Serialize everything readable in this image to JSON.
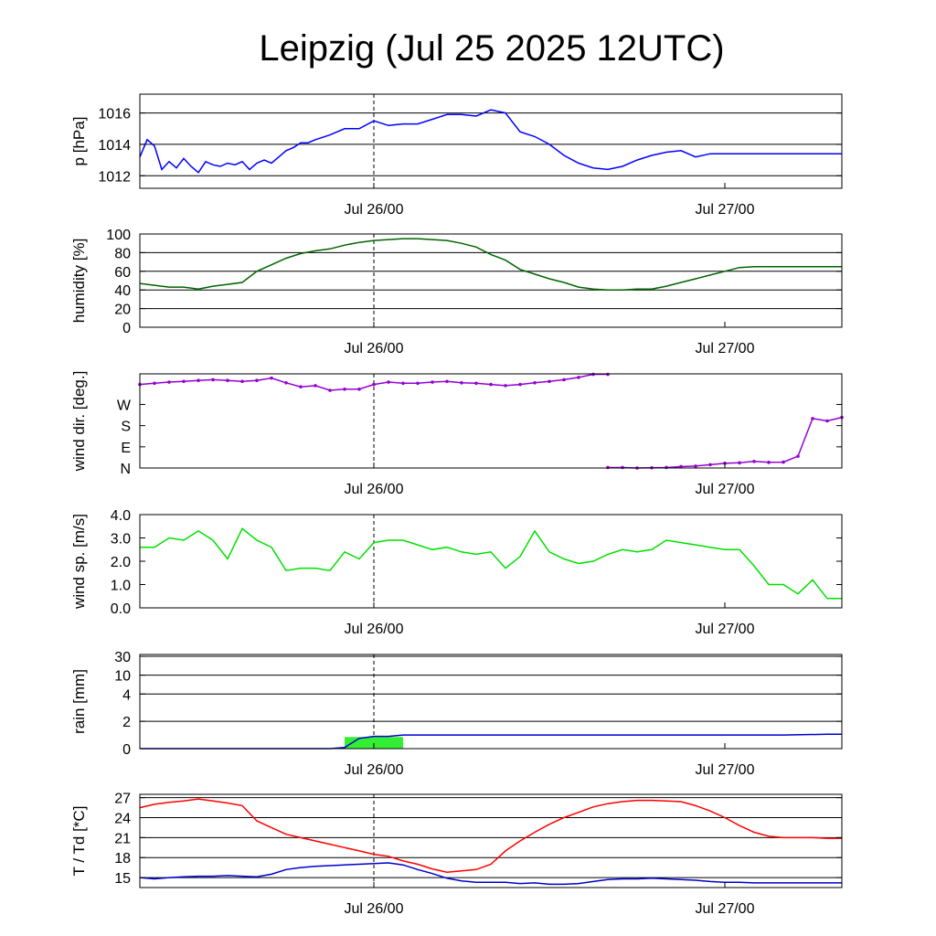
{
  "title": "Leipzig (Jul 25 2025 12UTC)",
  "chart_data": [
    {
      "type": "line",
      "ylabel": "p [hPa]",
      "ylim": [
        1011.2,
        1017.2
      ],
      "yticks": [
        "1012",
        "1014",
        "1016"
      ],
      "xticks": [
        "Jul 26/00",
        "Jul 27/00"
      ],
      "grid": true,
      "reference_line": "Jul 26/00",
      "series": [
        {
          "color": "#0000ff",
          "x": [
            0,
            0.5,
            1,
            1.5,
            2,
            2.5,
            3,
            3.5,
            4,
            4.5,
            5,
            5.5,
            6,
            6.5,
            7,
            7.5,
            8,
            8.5,
            9,
            9.5,
            10,
            10.5,
            11,
            11.5,
            12,
            13,
            14,
            15,
            16,
            17,
            18,
            19,
            20,
            21,
            22,
            23,
            24,
            25,
            26,
            27,
            28,
            29,
            30,
            31,
            32,
            33,
            34,
            35,
            36,
            37,
            38,
            39,
            40,
            41,
            42,
            43,
            44,
            45,
            46,
            47,
            48
          ],
          "values": [
            1013.2,
            1014.3,
            1013.9,
            1012.4,
            1012.9,
            1012.5,
            1013.1,
            1012.6,
            1012.2,
            1012.9,
            1012.7,
            1012.6,
            1012.8,
            1012.7,
            1012.9,
            1012.4,
            1012.8,
            1013.0,
            1012.8,
            1013.2,
            1013.6,
            1013.8,
            1014.1,
            1014.1,
            1014.3,
            1014.6,
            1015.0,
            1015.0,
            1015.5,
            1015.2,
            1015.3,
            1015.3,
            1015.6,
            1015.9,
            1015.9,
            1015.8,
            1016.2,
            1016.0,
            1014.8,
            1014.5,
            1014.0,
            1013.3,
            1012.8,
            1012.5,
            1012.4,
            1012.6,
            1013.0,
            1013.3,
            1013.5,
            1013.6,
            1013.2,
            1013.4,
            1013.4,
            1013.4,
            1013.4,
            1013.4,
            1013.4,
            1013.4,
            1013.4,
            1013.4,
            1013.4
          ]
        }
      ]
    },
    {
      "type": "line",
      "ylabel": "humidity [%]",
      "ylim": [
        0,
        100
      ],
      "yticks": [
        "0",
        "20",
        "40",
        "60",
        "80",
        "100"
      ],
      "xticks": [
        "Jul 26/00",
        "Jul 27/00"
      ],
      "grid": true,
      "reference_line": "Jul 26/00",
      "series": [
        {
          "color": "#006400",
          "x": [
            0,
            1,
            2,
            3,
            4,
            5,
            6,
            7,
            8,
            9,
            10,
            11,
            12,
            13,
            14,
            15,
            16,
            17,
            18,
            19,
            20,
            21,
            22,
            23,
            24,
            25,
            26,
            27,
            28,
            29,
            30,
            31,
            32,
            33,
            34,
            35,
            36,
            37,
            38,
            39,
            40,
            41,
            42,
            43,
            44,
            45,
            46,
            47,
            48
          ],
          "values": [
            47,
            45,
            43,
            43,
            41,
            44,
            46,
            48,
            60,
            67,
            74,
            79,
            82,
            84,
            88,
            91,
            93,
            94,
            95,
            95,
            94,
            93,
            90,
            86,
            78,
            72,
            62,
            57,
            52,
            48,
            43,
            41,
            40,
            40,
            41,
            41,
            44,
            48,
            52,
            56,
            60,
            64,
            65,
            65,
            65,
            65,
            65,
            65,
            65
          ]
        }
      ]
    },
    {
      "type": "scatter",
      "ylabel": "wind dir. [deg.]",
      "ylim": [
        0,
        400
      ],
      "yticks": [
        "N",
        "E",
        "S",
        "W"
      ],
      "ytick_values": [
        0,
        90,
        180,
        270
      ],
      "xticks": [
        "Jul 26/00",
        "Jul 27/00"
      ],
      "grid": false,
      "reference_line": "Jul 26/00",
      "series": [
        {
          "color": "#9400d3",
          "x": [
            0,
            1,
            2,
            3,
            4,
            5,
            6,
            7,
            8,
            9,
            10,
            11,
            12,
            13,
            14,
            15,
            16,
            17,
            18,
            19,
            20,
            21,
            22,
            23,
            24,
            25,
            26,
            27,
            28,
            29,
            30,
            31,
            32
          ],
          "values": [
            355,
            360,
            365,
            368,
            372,
            375,
            372,
            368,
            372,
            382,
            362,
            345,
            350,
            330,
            335,
            335,
            355,
            365,
            360,
            360,
            365,
            368,
            362,
            360,
            355,
            350,
            355,
            362,
            368,
            375,
            385,
            398,
            398
          ]
        },
        {
          "color": "#9400d3",
          "x": [
            32,
            33,
            34,
            35,
            36,
            37,
            38,
            39,
            40,
            41,
            42,
            43,
            44,
            45,
            46,
            47,
            48
          ],
          "values": [
            2,
            2,
            0,
            1,
            2,
            6,
            8,
            14,
            20,
            22,
            28,
            24,
            25,
            50,
            210,
            200,
            215
          ]
        }
      ]
    },
    {
      "type": "line",
      "ylabel": "wind sp. [m/s]",
      "ylim": [
        0,
        4.0
      ],
      "yticks": [
        "0.0",
        "1.0",
        "2.0",
        "3.0",
        "4.0"
      ],
      "xticks": [
        "Jul 26/00",
        "Jul 27/00"
      ],
      "grid": false,
      "reference_line": "Jul 26/00",
      "series": [
        {
          "color": "#00e000",
          "x": [
            0,
            1,
            2,
            3,
            4,
            5,
            6,
            7,
            8,
            9,
            10,
            11,
            12,
            13,
            14,
            15,
            16,
            17,
            18,
            19,
            20,
            21,
            22,
            23,
            24,
            25,
            26,
            27,
            28,
            29,
            30,
            31,
            32,
            33,
            34,
            35,
            36,
            37,
            38,
            39,
            40,
            41,
            42,
            43,
            44,
            45,
            46,
            47,
            48
          ],
          "values": [
            2.6,
            2.6,
            3.0,
            2.9,
            3.3,
            2.9,
            2.1,
            3.4,
            2.9,
            2.6,
            1.6,
            1.7,
            1.7,
            1.6,
            2.4,
            2.1,
            2.8,
            2.9,
            2.9,
            2.7,
            2.5,
            2.6,
            2.4,
            2.3,
            2.4,
            1.7,
            2.2,
            3.3,
            2.4,
            2.1,
            1.9,
            2.0,
            2.3,
            2.5,
            2.4,
            2.5,
            2.9,
            2.8,
            2.7,
            2.6,
            2.5,
            2.5,
            1.8,
            1.0,
            1.0,
            0.6,
            1.2,
            0.4,
            0.4
          ]
        }
      ]
    },
    {
      "type": "bar",
      "ylabel": "rain [mm]",
      "yticks": [
        "0",
        "2",
        "4",
        "10",
        "30"
      ],
      "ytick_values": [
        0,
        2,
        4,
        10,
        30
      ],
      "xticks": [
        "Jul 26/00",
        "Jul 27/00"
      ],
      "grid": true,
      "reference_line": "Jul 26/00",
      "bars": [
        {
          "color": "#33ee33",
          "x0": 14.0,
          "x1": 16.0,
          "value": 0.85
        },
        {
          "color": "#33ee33",
          "x0": 16.0,
          "x1": 18.0,
          "value": 0.85
        }
      ],
      "series": [
        {
          "color": "#0000cc",
          "x": [
            0,
            13,
            14,
            15,
            16,
            17,
            18,
            20,
            30,
            44,
            47,
            48
          ],
          "values": [
            0,
            0,
            0.08,
            0.75,
            0.9,
            0.9,
            1.0,
            1.0,
            1.0,
            1.0,
            1.05,
            1.05
          ]
        }
      ]
    },
    {
      "type": "line",
      "ylabel": "T / Td [*C]",
      "ylim": [
        13.5,
        27.5
      ],
      "yticks": [
        "15",
        "18",
        "21",
        "24",
        "27"
      ],
      "xticks": [
        "Jul 26/00",
        "Jul 27/00"
      ],
      "grid": true,
      "reference_line": "Jul 26/00",
      "series": [
        {
          "color": "#ff0000",
          "x": [
            0,
            1,
            2,
            3,
            4,
            5,
            6,
            7,
            8,
            9,
            10,
            11,
            12,
            13,
            14,
            15,
            16,
            17,
            18,
            19,
            20,
            21,
            22,
            23,
            24,
            25,
            26,
            27,
            28,
            29,
            30,
            31,
            32,
            33,
            34,
            35,
            36,
            37,
            38,
            39,
            40,
            41,
            42,
            43,
            44,
            45,
            46,
            47,
            48
          ],
          "values": [
            25.5,
            26.0,
            26.3,
            26.5,
            26.8,
            26.5,
            26.2,
            25.8,
            23.5,
            22.5,
            21.5,
            21.0,
            20.5,
            20.0,
            19.5,
            19.0,
            18.5,
            18.2,
            17.5,
            17.0,
            16.3,
            15.8,
            16.0,
            16.2,
            17.0,
            19.0,
            20.5,
            21.8,
            23.0,
            24.0,
            24.8,
            25.6,
            26.1,
            26.4,
            26.6,
            26.6,
            26.5,
            26.4,
            25.8,
            25.0,
            24.0,
            22.8,
            21.8,
            21.2,
            21.0,
            21.0,
            21.0,
            20.9,
            20.9
          ]
        },
        {
          "color": "#0000cc",
          "x": [
            0,
            1,
            2,
            3,
            4,
            5,
            6,
            7,
            8,
            9,
            10,
            11,
            12,
            13,
            14,
            15,
            16,
            17,
            18,
            19,
            20,
            21,
            22,
            23,
            24,
            25,
            26,
            27,
            28,
            29,
            30,
            31,
            32,
            33,
            34,
            35,
            36,
            37,
            38,
            39,
            40,
            41,
            42,
            43,
            44,
            45,
            46,
            47,
            48
          ],
          "values": [
            15.0,
            14.8,
            15.0,
            15.1,
            15.2,
            15.2,
            15.3,
            15.2,
            15.1,
            15.5,
            16.2,
            16.5,
            16.7,
            16.8,
            16.9,
            17.0,
            17.1,
            17.2,
            16.9,
            16.2,
            15.6,
            14.9,
            14.5,
            14.3,
            14.3,
            14.3,
            14.1,
            14.2,
            14.0,
            14.0,
            14.1,
            14.4,
            14.7,
            14.8,
            14.8,
            14.9,
            14.8,
            14.7,
            14.6,
            14.4,
            14.3,
            14.3,
            14.2,
            14.2,
            14.2,
            14.2,
            14.2,
            14.2,
            14.2
          ]
        }
      ]
    }
  ]
}
